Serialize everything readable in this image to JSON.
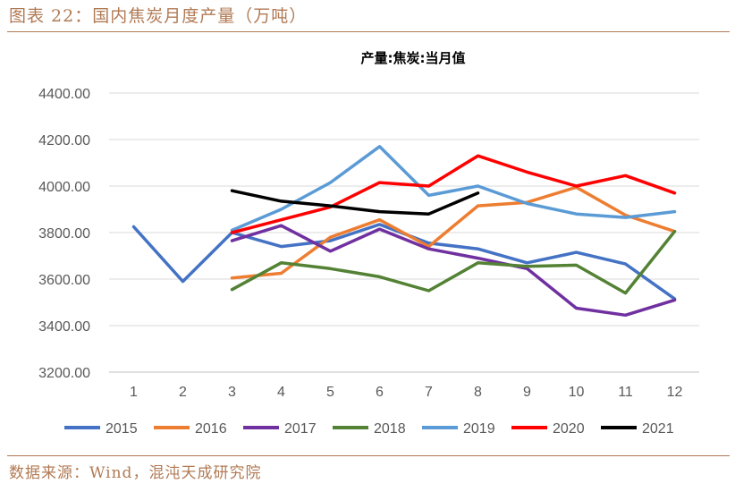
{
  "figure": {
    "title": "图表 22：国内焦炭月度产量（万吨）",
    "source": "数据来源：Wind，混沌天成研究院"
  },
  "colors": {
    "accent": "#b07a54",
    "grid": "#d9d9d9",
    "axis": "#bfbfbf",
    "tick_text": "#595959"
  },
  "chart_data": {
    "type": "line",
    "title": "产量:焦炭:当月值",
    "xlabel": "",
    "ylabel": "",
    "categories": [
      "1",
      "2",
      "3",
      "4",
      "5",
      "6",
      "7",
      "8",
      "9",
      "10",
      "11",
      "12"
    ],
    "y_ticks": [
      "3200.00",
      "3400.00",
      "3600.00",
      "3800.00",
      "4000.00",
      "4200.00",
      "4400.00"
    ],
    "ylim": [
      3200,
      4400
    ],
    "grid": "horizontal",
    "legend_position": "bottom",
    "series": [
      {
        "name": "2015",
        "color": "#4472c4",
        "values": [
          3825,
          3590,
          3800,
          3740,
          3765,
          3835,
          3755,
          3730,
          3670,
          3715,
          3665,
          3515
        ]
      },
      {
        "name": "2016",
        "color": "#ed7d31",
        "values": [
          null,
          null,
          3605,
          3625,
          3780,
          3855,
          3740,
          3915,
          3930,
          3995,
          3875,
          3805
        ]
      },
      {
        "name": "2017",
        "color": "#7030a0",
        "values": [
          null,
          null,
          3765,
          3830,
          3720,
          3815,
          3730,
          3690,
          3645,
          3475,
          3445,
          3510
        ]
      },
      {
        "name": "2018",
        "color": "#548235",
        "values": [
          null,
          null,
          3555,
          3670,
          3645,
          3610,
          3550,
          3670,
          3655,
          3660,
          3540,
          3805
        ]
      },
      {
        "name": "2019",
        "color": "#5b9bd5",
        "values": [
          null,
          null,
          3810,
          3900,
          4015,
          4170,
          3960,
          4000,
          3925,
          3880,
          3865,
          3890
        ]
      },
      {
        "name": "2020",
        "color": "#ff0000",
        "values": [
          null,
          null,
          3800,
          3855,
          3910,
          4015,
          4000,
          4130,
          4060,
          4000,
          4045,
          3970
        ]
      },
      {
        "name": "2021",
        "color": "#000000",
        "values": [
          null,
          null,
          3980,
          3935,
          3915,
          3890,
          3880,
          3970,
          null,
          null,
          null,
          null
        ]
      }
    ]
  }
}
